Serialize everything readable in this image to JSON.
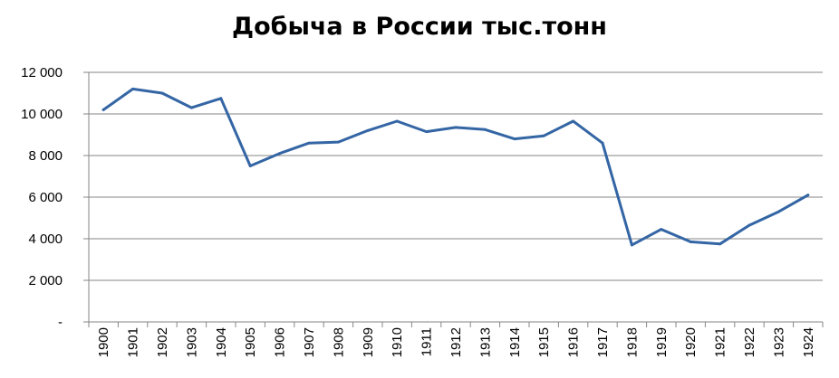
{
  "chart_data": {
    "type": "line",
    "title": "Добыча в России тыс.тонн",
    "xlabel": "",
    "ylabel": "",
    "categories": [
      "1900",
      "1901",
      "1902",
      "1903",
      "1904",
      "1905",
      "1906",
      "1907",
      "1908",
      "1909",
      "1910",
      "1911",
      "1912",
      "1913",
      "1914",
      "1915",
      "1916",
      "1917",
      "1918",
      "1919",
      "1920",
      "1921",
      "1922",
      "1923",
      "1924"
    ],
    "series": [
      {
        "values": [
          10200,
          11200,
          11000,
          10300,
          10750,
          7500,
          8100,
          8600,
          8650,
          9200,
          9650,
          9150,
          9350,
          9250,
          8800,
          8950,
          9650,
          8600,
          3700,
          4450,
          3850,
          3750,
          4650,
          5300,
          6100
        ]
      }
    ],
    "ylim": [
      0,
      12000
    ],
    "yticks": [
      0,
      2000,
      4000,
      6000,
      8000,
      10000,
      12000
    ],
    "ytick_labels": [
      "-",
      "2 000",
      "4 000",
      "6 000",
      "8 000",
      "10 000",
      "12 000"
    ],
    "grid": true,
    "legend": "none",
    "colors": {
      "line": "#3465a4",
      "grid": "#868686",
      "axis": "#868686"
    }
  }
}
